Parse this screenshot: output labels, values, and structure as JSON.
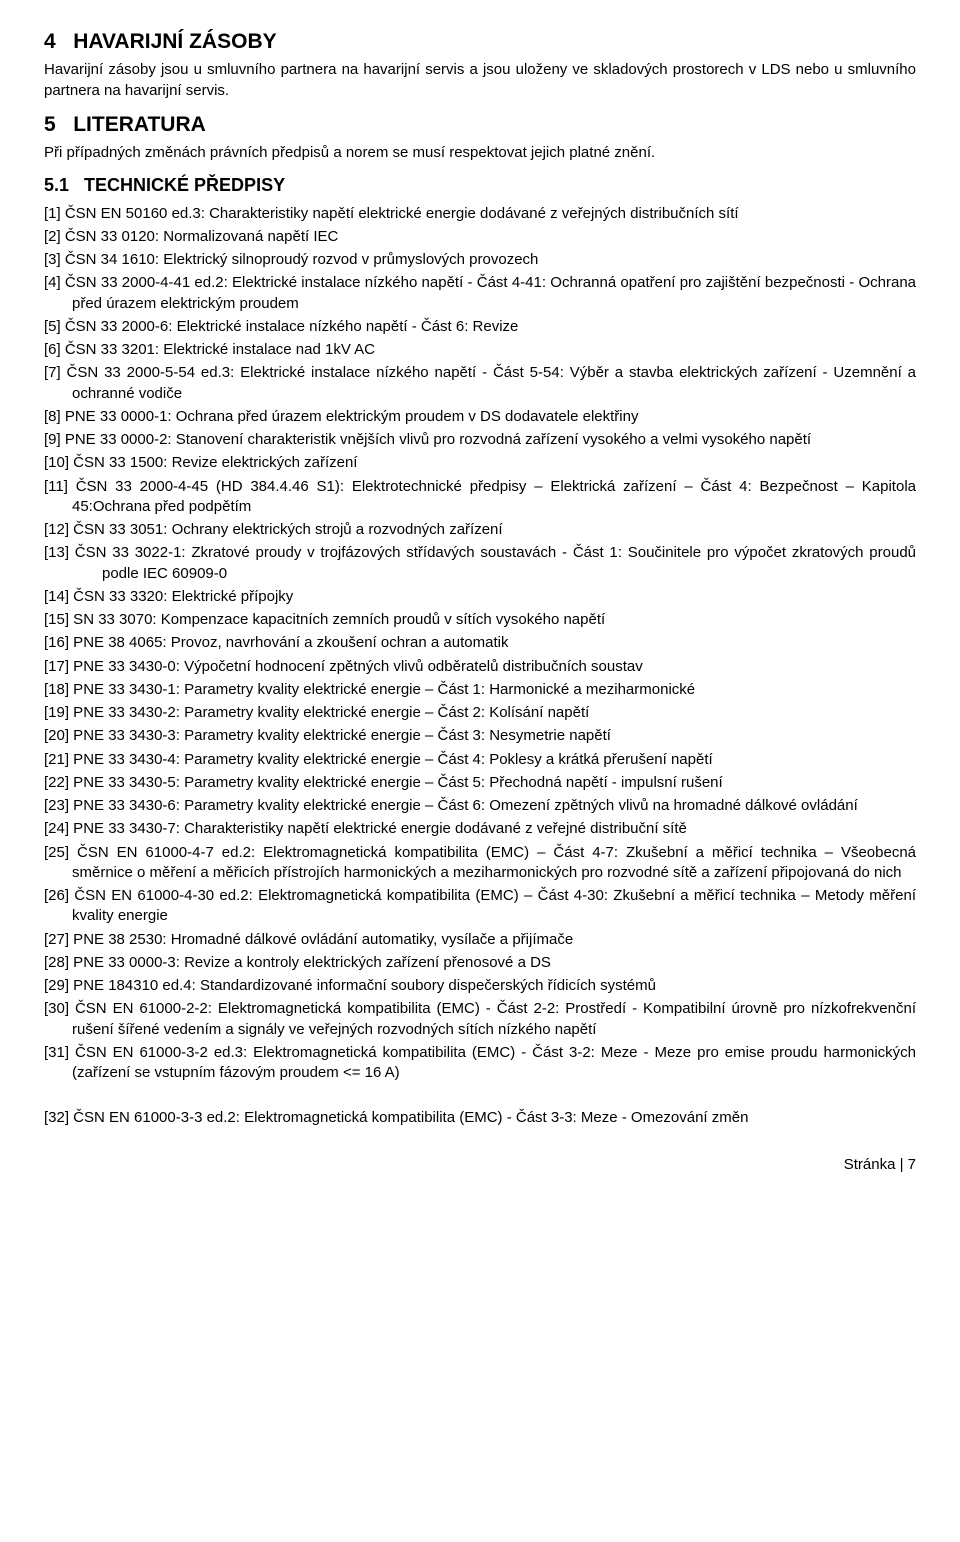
{
  "section_havarijni": {
    "number": "4",
    "title": "HAVARIJNÍ ZÁSOBY",
    "body": "Havarijní zásoby jsou u smluvního partnera na havarijní servis a jsou uloženy ve skladových prostorech v LDS nebo u smluvního partnera na havarijní servis."
  },
  "section_literatura": {
    "number": "5",
    "title": "LITERATURA",
    "body": "Při případných změnách právních předpisů a norem se musí respektovat jejich platné znění."
  },
  "section_technicke": {
    "number": "5.1",
    "title": "TECHNICKÉ PŘEDPISY"
  },
  "refs": [
    {
      "main": "[1] ČSN EN 50160 ed.3: Charakteristiky napětí elektrické energie dodávané z veřejných distribučních sítí"
    },
    {
      "main": "[2] ČSN 33 0120: Normalizovaná napětí IEC"
    },
    {
      "main": "[3] ČSN 34 1610: Elektrický silnoproudý rozvod v průmyslových provozech"
    },
    {
      "main": "[4] ČSN 33 2000-4-41 ed.2: Elektrické instalace nízkého napětí - Část 4-41: Ochranná opatření pro zajištění bezpečnosti - Ochrana před úrazem elektrickým proudem",
      "indent": true
    },
    {
      "main": "[5] ČSN 33 2000-6: Elektrické instalace nízkého napětí - Část 6: Revize"
    },
    {
      "main": "[6] ČSN 33 3201: Elektrické instalace nad 1kV AC"
    },
    {
      "main": "[7] ČSN 33 2000-5-54 ed.3: Elektrické instalace nízkého napětí - Část 5-54: Výběr a stavba elektrických zařízení - Uzemnění a ochranné vodiče",
      "indent": true
    },
    {
      "main": "[8] PNE 33 0000-1: Ochrana před úrazem elektrickým proudem v DS dodavatele elektřiny"
    },
    {
      "main": "[9] PNE 33 0000-2: Stanovení charakteristik vnějších vlivů pro rozvodná zařízení vysokého a velmi vysokého napětí",
      "indent": true
    },
    {
      "main": "[10] ČSN 33 1500: Revize elektrických zařízení"
    },
    {
      "main": "[11] ČSN 33 2000-4-45 (HD 384.4.46 S1): Elektrotechnické předpisy – Elektrická zařízení – Část 4: Bezpečnost – Kapitola 45:Ochrana před podpětím",
      "indent": true
    },
    {
      "main": "[12] ČSN 33 3051: Ochrany elektrických strojů a rozvodných zařízení"
    },
    {
      "main": "[13] ČSN 33 3022-1: Zkratové proudy v trojfázových střídavých soustavách  - Část 1: Součinitele pro výpočet zkratových proudů podle IEC 60909-0",
      "indent2": true
    },
    {
      "main": "[14] ČSN 33 3320: Elektrické přípojky"
    },
    {
      "main": "[15] SN 33 3070: Kompenzace kapacitních zemních proudů v sítích vysokého napětí"
    },
    {
      "main": "[16] PNE 38 4065: Provoz, navrhování a zkoušení ochran a automatik"
    },
    {
      "main": "[17] PNE 33 3430-0: Výpočetní hodnocení zpětných vlivů odběratelů distribučních soustav"
    },
    {
      "main": "[18] PNE 33 3430-1: Parametry kvality elektrické energie – Část 1: Harmonické a meziharmonické"
    },
    {
      "main": "[19] PNE 33 3430-2: Parametry kvality elektrické energie – Část 2: Kolísání napětí"
    },
    {
      "main": "[20] PNE 33 3430-3: Parametry kvality elektrické energie – Část 3: Nesymetrie napětí"
    },
    {
      "main": "[21] PNE 33 3430-4: Parametry kvality elektrické energie – Část 4: Poklesy a krátká přerušení napětí"
    },
    {
      "main": "[22] PNE 33 3430-5: Parametry kvality elektrické energie – Část 5: Přechodná napětí - impulsní rušení"
    },
    {
      "main": "[23] PNE 33 3430-6: Parametry kvality elektrické energie – Část 6: Omezení zpětných vlivů na hromadné dálkové ovládání",
      "indent": true
    },
    {
      "main": "[24] PNE 33 3430-7: Charakteristiky napětí elektrické energie dodávané z veřejné distribuční sítě"
    },
    {
      "main": "[25] ČSN EN 61000-4-7 ed.2: Elektromagnetická kompatibilita (EMC) – Část 4-7: Zkušební a měřicí technika – Všeobecná směrnice o měření a měřicích přístrojích harmonických a meziharmonických pro rozvodné sítě a zařízení připojovaná do nich",
      "indent": true
    },
    {
      "main": "[26] ČSN EN 61000-4-30 ed.2: Elektromagnetická kompatibilita (EMC) – Část 4-30: Zkušební a měřicí technika – Metody měření kvality energie",
      "indent": true
    },
    {
      "main": "[27] PNE 38 2530: Hromadné dálkové ovládání automatiky, vysílače a přijímače"
    },
    {
      "main": "[28] PNE 33 0000-3: Revize a kontroly elektrických zařízení přenosové a DS"
    },
    {
      "main": "[29] PNE 184310 ed.4: Standardizované informační soubory dispečerských řídicích systémů"
    },
    {
      "main": "[30] ČSN EN 61000-2-2: Elektromagnetická kompatibilita (EMC) - Část 2-2: Prostředí - Kompatibilní úrovně pro nízkofrekvenční rušení šířené vedením a signály ve veřejných rozvodných sítích nízkého napětí",
      "indent": true
    },
    {
      "main": "[31] ČSN EN 61000-3-2 ed.3: Elektromagnetická kompatibilita (EMC) - Část 3-2: Meze - Meze pro emise proudu harmonických (zařízení se vstupním fázovým proudem <= 16 A)",
      "indent": true
    },
    {
      "gap": true
    },
    {
      "main": "[32] ČSN EN 61000-3-3 ed.2: Elektromagnetická kompatibilita (EMC) - Část 3-3: Meze - Omezování změn"
    }
  ],
  "footer": "Stránka | 7"
}
